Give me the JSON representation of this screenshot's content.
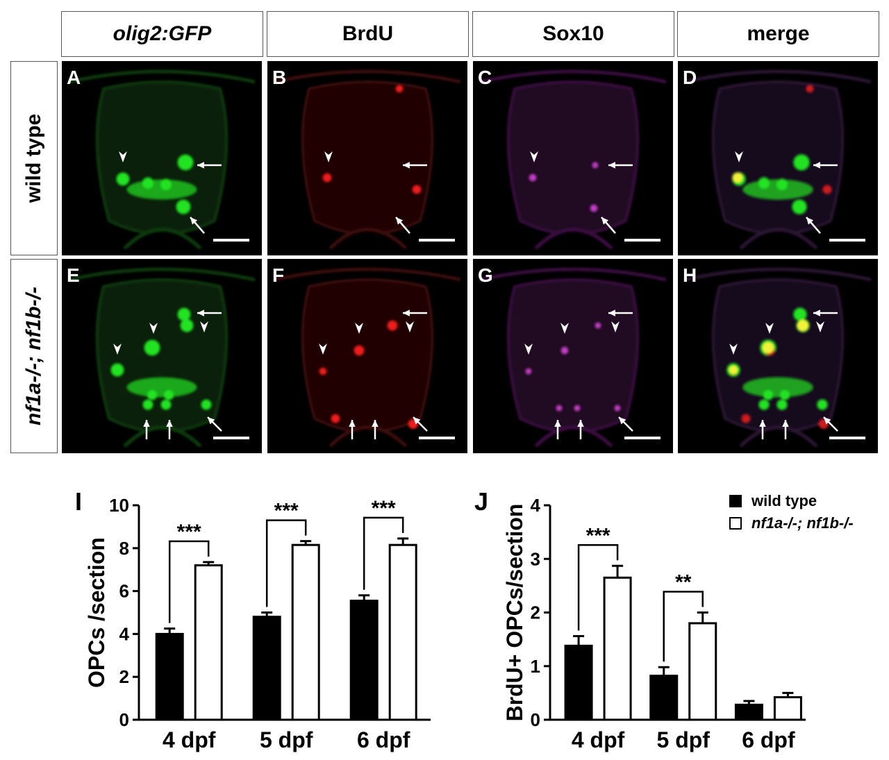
{
  "columns": [
    {
      "label": "olig2:GFP",
      "italic": true
    },
    {
      "label": "BrdU",
      "italic": false
    },
    {
      "label": "Sox10",
      "italic": false
    },
    {
      "label": "merge",
      "italic": false
    }
  ],
  "rows": [
    {
      "label": "wild type",
      "italic": false
    },
    {
      "label": "nf1a-/-; nf1b-/-",
      "italic": true
    }
  ],
  "panel_letters": [
    "A",
    "B",
    "C",
    "D",
    "E",
    "F",
    "G",
    "H"
  ],
  "panel_channels": [
    "green",
    "red",
    "magenta",
    "merge",
    "green",
    "red",
    "magenta",
    "merge"
  ],
  "channel_colors": {
    "green": "#22e322",
    "red": "#ee1c1c",
    "magenta": "#c23dc2",
    "yellow": "#f2f23a"
  },
  "legend": {
    "wild_type": "wild type",
    "mutant": "nf1a-/-; nf1b-/-"
  },
  "chart_data": [
    {
      "type": "bar",
      "panel_label": "I",
      "categories": [
        "4 dpf",
        "5 dpf",
        "6 dpf"
      ],
      "ylabel": "OPCs /section",
      "ylim": [
        0,
        10
      ],
      "yticks": [
        0,
        2,
        4,
        6,
        8,
        10
      ],
      "series": [
        {
          "name": "wild type",
          "values": [
            4.0,
            4.8,
            5.55
          ],
          "errors": [
            0.25,
            0.2,
            0.25
          ]
        },
        {
          "name": "nf1a-/-; nf1b-/-",
          "values": [
            7.2,
            8.15,
            8.15
          ],
          "errors": [
            0.15,
            0.18,
            0.3
          ]
        }
      ],
      "significance": [
        "***",
        "***",
        "***"
      ]
    },
    {
      "type": "bar",
      "panel_label": "J",
      "categories": [
        "4 dpf",
        "5 dpf",
        "6 dpf"
      ],
      "ylabel": "BrdU+ OPCs/section",
      "ylim": [
        0,
        4
      ],
      "yticks": [
        0,
        1,
        2,
        3,
        4
      ],
      "series": [
        {
          "name": "wild type",
          "values": [
            1.38,
            0.82,
            0.28
          ],
          "errors": [
            0.18,
            0.16,
            0.07
          ]
        },
        {
          "name": "nf1a-/-; nf1b-/-",
          "values": [
            2.65,
            1.8,
            0.42
          ],
          "errors": [
            0.22,
            0.2,
            0.08
          ]
        }
      ],
      "significance": [
        "***",
        "**",
        ""
      ]
    }
  ]
}
